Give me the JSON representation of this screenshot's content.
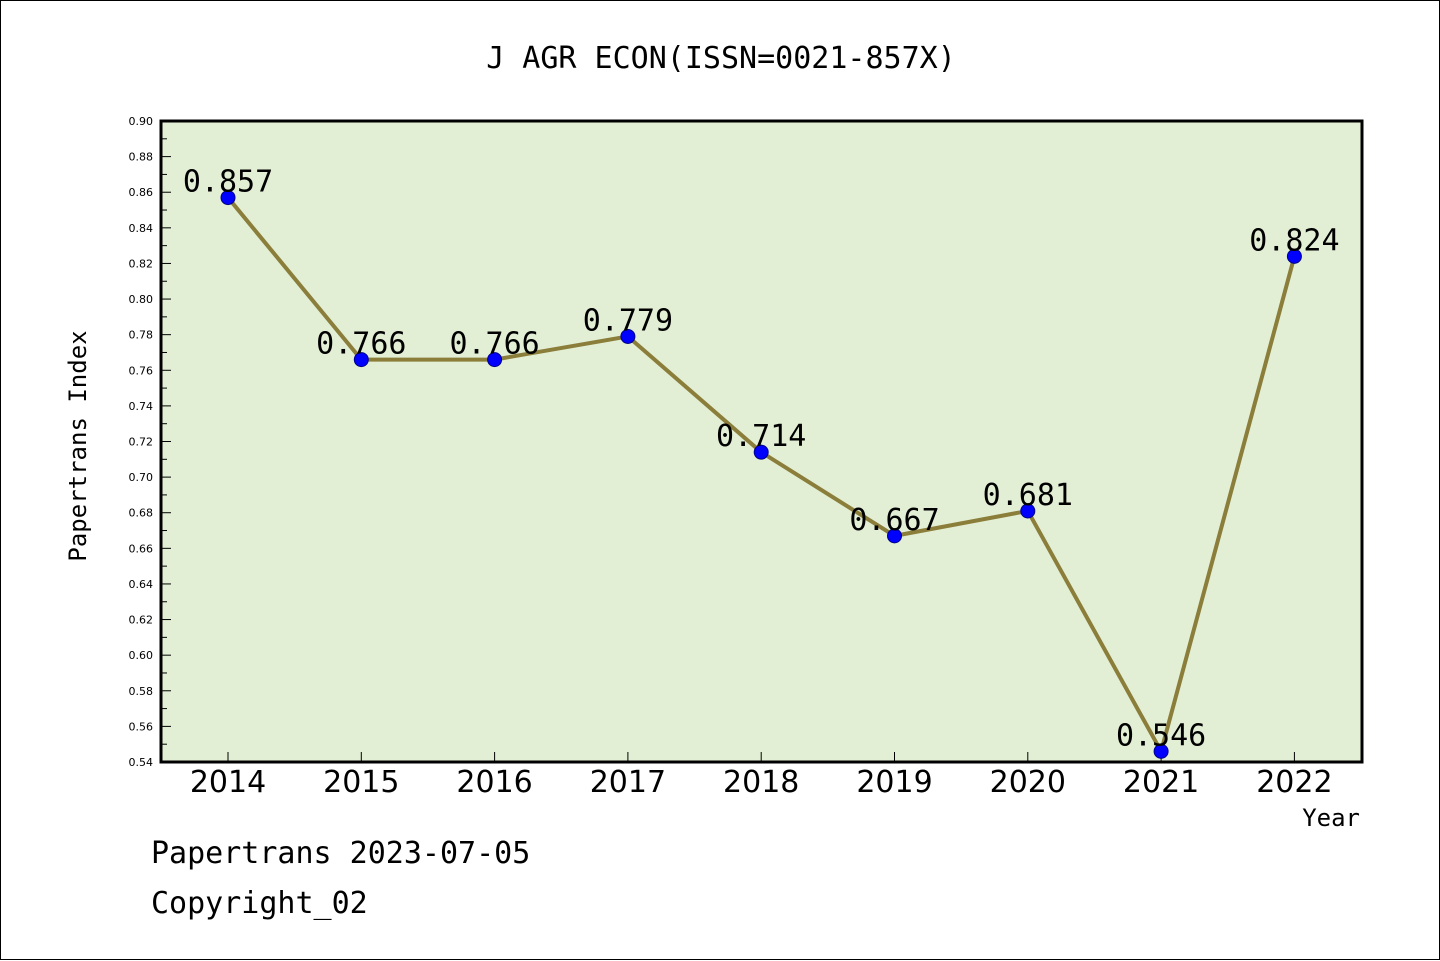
{
  "chart_data": {
    "type": "line",
    "title": "J AGR ECON(ISSN=0021-857X)",
    "xlabel": "Year",
    "ylabel": "Papertrans Index",
    "categories": [
      "2014",
      "2015",
      "2016",
      "2017",
      "2018",
      "2019",
      "2020",
      "2021",
      "2022"
    ],
    "values": [
      0.857,
      0.766,
      0.766,
      0.779,
      0.714,
      0.667,
      0.681,
      0.546,
      0.824
    ],
    "data_labels": [
      "0.857",
      "0.766",
      "0.766",
      "0.779",
      "0.714",
      "0.667",
      "0.681",
      "0.546",
      "0.824"
    ],
    "ylim": [
      0.54,
      0.9
    ],
    "yticks": [
      "0.54",
      "0.56",
      "0.58",
      "0.60",
      "0.62",
      "0.64",
      "0.66",
      "0.68",
      "0.70",
      "0.72",
      "0.74",
      "0.76",
      "0.78",
      "0.80",
      "0.82",
      "0.84",
      "0.86",
      "0.88",
      "0.90"
    ],
    "grid": false,
    "colors": {
      "line": "#8B7D3A",
      "marker": "#0000FF",
      "plot_bg": "#E2EFD4"
    }
  },
  "footer": {
    "line1": "Papertrans 2023-07-05",
    "line2": "Copyright_02"
  }
}
